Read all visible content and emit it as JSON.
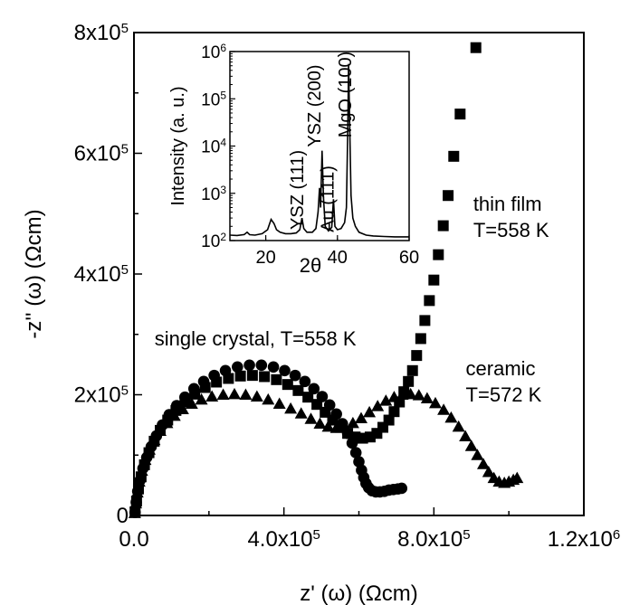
{
  "chart_data": [
    {
      "type": "scatter",
      "xlabel_main": "z'",
      "xlabel_unit": " (ω) (Ωcm)",
      "ylabel_main": "-z''",
      "ylabel_unit": " (ω) (Ωcm)",
      "xlim": [
        0,
        1200000
      ],
      "ylim": [
        0,
        800000
      ],
      "x_ticks": [
        {
          "value": 0,
          "mant": "0.0",
          "exp": ""
        },
        {
          "value": 400000,
          "mant": "4.0x10",
          "exp": "5"
        },
        {
          "value": 800000,
          "mant": "8.0x10",
          "exp": "5"
        },
        {
          "value": 1200000,
          "mant": "1.2x10",
          "exp": "6"
        }
      ],
      "y_ticks": [
        {
          "value": 0,
          "mant": "0",
          "exp": ""
        },
        {
          "value": 200000,
          "mant": "2x10",
          "exp": "5"
        },
        {
          "value": 400000,
          "mant": "4x10",
          "exp": "5"
        },
        {
          "value": 600000,
          "mant": "6x10",
          "exp": "5"
        },
        {
          "value": 800000,
          "mant": "8x10",
          "exp": "5"
        }
      ],
      "annotations": [
        {
          "lines": [
            "thin film",
            "T=558 K"
          ],
          "x": 905000,
          "y": 505000
        },
        {
          "lines": [
            "single crystal, T=558 K"
          ],
          "x": 55000,
          "y": 282000
        },
        {
          "lines": [
            "ceramic",
            "T=572 K"
          ],
          "x": 885000,
          "y": 232000
        }
      ],
      "series": [
        {
          "marker": "circle",
          "points": [
            [
              3000,
              5000
            ],
            [
              6000,
              22000
            ],
            [
              10000,
              40000
            ],
            [
              16000,
              58000
            ],
            [
              24000,
              78000
            ],
            [
              34000,
              96000
            ],
            [
              46000,
              114000
            ],
            [
              60000,
              132000
            ],
            [
              76000,
              150000
            ],
            [
              94000,
              167000
            ],
            [
              114000,
              182000
            ],
            [
              136000,
              196000
            ],
            [
              160000,
              210000
            ],
            [
              186000,
              222000
            ],
            [
              214000,
              232000
            ],
            [
              244000,
              240000
            ],
            [
              276000,
              246000
            ],
            [
              308000,
              249000
            ],
            [
              340000,
              249000
            ],
            [
              372000,
              246000
            ],
            [
              402000,
              240000
            ],
            [
              430000,
              232000
            ],
            [
              456000,
              222000
            ],
            [
              480000,
              210000
            ],
            [
              502000,
              197000
            ],
            [
              522000,
              183000
            ],
            [
              540000,
              168000
            ],
            [
              556000,
              152000
            ],
            [
              570000,
              136000
            ],
            [
              582000,
              120000
            ],
            [
              592000,
              104000
            ],
            [
              600000,
              89000
            ],
            [
              607000,
              75000
            ],
            [
              613000,
              63000
            ],
            [
              619000,
              53000
            ],
            [
              626000,
              46000
            ],
            [
              635000,
              41000
            ],
            [
              645000,
              39000
            ],
            [
              656000,
              39000
            ],
            [
              668000,
              40000
            ],
            [
              680000,
              42000
            ],
            [
              692000,
              43000
            ],
            [
              704000,
              44000
            ],
            [
              714000,
              45000
            ]
          ]
        },
        {
          "marker": "square",
          "points": [
            [
              3000,
              6000
            ],
            [
              7000,
              24000
            ],
            [
              12000,
              44000
            ],
            [
              19000,
              64000
            ],
            [
              28000,
              84000
            ],
            [
              40000,
              104000
            ],
            [
              54000,
              123000
            ],
            [
              70000,
              141000
            ],
            [
              90000,
              158000
            ],
            [
              112000,
              174000
            ],
            [
              136000,
              188000
            ],
            [
              162000,
              201000
            ],
            [
              190000,
              212000
            ],
            [
              220000,
              221000
            ],
            [
              252000,
              227000
            ],
            [
              284000,
              231000
            ],
            [
              316000,
              232000
            ],
            [
              348000,
              230000
            ],
            [
              380000,
              225000
            ],
            [
              410000,
              217000
            ],
            [
              438000,
              207000
            ],
            [
              464000,
              196000
            ],
            [
              488000,
              184000
            ],
            [
              510000,
              171000
            ],
            [
              530000,
              158000
            ],
            [
              550000,
              146000
            ],
            [
              570000,
              136000
            ],
            [
              590000,
              130000
            ],
            [
              610000,
              128000
            ],
            [
              630000,
              130000
            ],
            [
              648000,
              136000
            ],
            [
              664000,
              146000
            ],
            [
              680000,
              158000
            ],
            [
              694000,
              172000
            ],
            [
              708000,
              188000
            ],
            [
              720000,
              205000
            ],
            [
              732000,
              222000
            ],
            [
              743000,
              240000
            ],
            [
              754000,
              265000
            ],
            [
              765000,
              293000
            ],
            [
              776000,
              323000
            ],
            [
              788000,
              356000
            ],
            [
              800000,
              390000
            ],
            [
              812000,
              432000
            ],
            [
              825000,
              480000
            ],
            [
              838000,
              530000
            ],
            [
              853000,
              595000
            ],
            [
              870000,
              665000
            ],
            [
              912000,
              775000
            ]
          ]
        },
        {
          "marker": "triangle",
          "points": [
            [
              2000,
              4000
            ],
            [
              5000,
              20000
            ],
            [
              9000,
              38000
            ],
            [
              14000,
              56000
            ],
            [
              21000,
              74000
            ],
            [
              30000,
              92000
            ],
            [
              41000,
              109000
            ],
            [
              54000,
              125000
            ],
            [
              70000,
              140000
            ],
            [
              88000,
              153000
            ],
            [
              108000,
              165000
            ],
            [
              130000,
              176000
            ],
            [
              154000,
              185000
            ],
            [
              180000,
              192000
            ],
            [
              208000,
              197000
            ],
            [
              238000,
              200000
            ],
            [
              268000,
              201000
            ],
            [
              298000,
              200000
            ],
            [
              328000,
              197000
            ],
            [
              358000,
              192000
            ],
            [
              388000,
              185000
            ],
            [
              418000,
              177000
            ],
            [
              446000,
              169000
            ],
            [
              472000,
              160000
            ],
            [
              496000,
              152000
            ],
            [
              518000,
              147000
            ],
            [
              540000,
              145000
            ],
            [
              562000,
              147000
            ],
            [
              584000,
              153000
            ],
            [
              606000,
              161000
            ],
            [
              628000,
              171000
            ],
            [
              650000,
              181000
            ],
            [
              672000,
              190000
            ],
            [
              694000,
              196000
            ],
            [
              716000,
              200000
            ],
            [
              738000,
              201000
            ],
            [
              760000,
              199000
            ],
            [
              782000,
              194000
            ],
            [
              804000,
              186000
            ],
            [
              826000,
              175000
            ],
            [
              846000,
              162000
            ],
            [
              866000,
              147000
            ],
            [
              884000,
              131000
            ],
            [
              900000,
              115000
            ],
            [
              916000,
              100000
            ],
            [
              932000,
              85000
            ],
            [
              946000,
              72000
            ],
            [
              960000,
              62000
            ],
            [
              974000,
              56000
            ],
            [
              988000,
              54000
            ],
            [
              1000000,
              56000
            ],
            [
              1012000,
              59000
            ],
            [
              1022000,
              62000
            ]
          ]
        }
      ]
    },
    {
      "type": "line",
      "inset": true,
      "xlabel": "2θ",
      "ylabel": "Intensity (a. u.)",
      "xlim": [
        10,
        60
      ],
      "ylim": [
        100,
        1000000
      ],
      "yscale": "log",
      "x_ticks": [
        20,
        40,
        60
      ],
      "y_ticks": [
        {
          "value": 100,
          "mant": "10",
          "exp": "2"
        },
        {
          "value": 1000,
          "mant": "10",
          "exp": "3"
        },
        {
          "value": 10000,
          "mant": "10",
          "exp": "4"
        },
        {
          "value": 100000,
          "mant": "10",
          "exp": "5"
        },
        {
          "value": 1000000,
          "mant": "10",
          "exp": "6"
        }
      ],
      "peak_labels": [
        {
          "text": "YSZ (111)",
          "x": 30.5,
          "y": 170
        },
        {
          "text": "YSZ (200)",
          "x": 35.3,
          "y": 9500
        },
        {
          "text": "Au (111)",
          "x": 38.9,
          "y": 150
        },
        {
          "text": "MgO (100)",
          "x": 43.9,
          "y": 15000
        }
      ],
      "points": [
        [
          10,
          130
        ],
        [
          12,
          128
        ],
        [
          14,
          134
        ],
        [
          14.8,
          150
        ],
        [
          15.5,
          133
        ],
        [
          17,
          130
        ],
        [
          19,
          140
        ],
        [
          20.5,
          170
        ],
        [
          21.5,
          280
        ],
        [
          22.3,
          230
        ],
        [
          23,
          170
        ],
        [
          24,
          150
        ],
        [
          25.5,
          140
        ],
        [
          27,
          140
        ],
        [
          28.5,
          145
        ],
        [
          29.5,
          170
        ],
        [
          30.1,
          300
        ],
        [
          30.6,
          180
        ],
        [
          31.5,
          150
        ],
        [
          33,
          150
        ],
        [
          34,
          180
        ],
        [
          34.6,
          400
        ],
        [
          35.0,
          1300
        ],
        [
          35.3,
          500
        ],
        [
          35.7,
          8000
        ],
        [
          36.1,
          800
        ],
        [
          36.6,
          200
        ],
        [
          37.5,
          160
        ],
        [
          38.4,
          190
        ],
        [
          38.9,
          750
        ],
        [
          39.3,
          200
        ],
        [
          40,
          170
        ],
        [
          41,
          180
        ],
        [
          42,
          240
        ],
        [
          42.5,
          500
        ],
        [
          42.9,
          30000
        ],
        [
          43.1,
          550000
        ],
        [
          43.4,
          30000
        ],
        [
          43.8,
          900
        ],
        [
          44.3,
          300
        ],
        [
          45,
          200
        ],
        [
          46,
          150
        ],
        [
          48,
          130
        ],
        [
          50,
          125
        ],
        [
          53,
          122
        ],
        [
          56,
          120
        ],
        [
          59,
          120
        ],
        [
          60,
          120
        ]
      ]
    }
  ]
}
